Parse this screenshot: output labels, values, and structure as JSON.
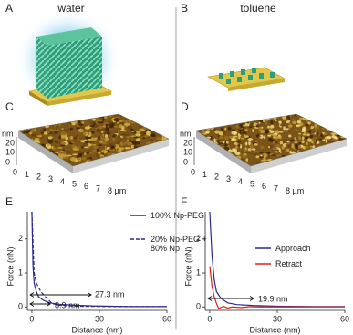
{
  "labels": [
    "A",
    "B",
    "C",
    "D",
    "E",
    "F"
  ],
  "titles": [
    "water",
    "toluene"
  ],
  "afm": {
    "z_unit": "nm",
    "z_ticks": [
      "20",
      "10",
      "0"
    ],
    "x_ticks": [
      "0",
      "1",
      "2",
      "3",
      "4",
      "5",
      "6",
      "7",
      "8 µm"
    ]
  },
  "chart_data": [
    {
      "type": "line",
      "ylabel": "Force (nN)",
      "xlabel": "Distance (nm)",
      "xlim": [
        -2,
        60
      ],
      "ylim": [
        -0.1,
        2.8
      ],
      "xticks": [
        0,
        30,
        60
      ],
      "yticks": [
        0,
        1,
        2
      ],
      "annotations": [
        "27.3 nm",
        "8.9 nm"
      ],
      "series": [
        {
          "name": "100% Np-PEG",
          "color": "#2a2a8c",
          "dash": false,
          "x": [
            0,
            0.5,
            1,
            2,
            3,
            5,
            8,
            12,
            20,
            27,
            35,
            45,
            60
          ],
          "values": [
            2.8,
            1.2,
            0.7,
            0.45,
            0.3,
            0.2,
            0.12,
            0.08,
            0.05,
            0.03,
            0.02,
            0.01,
            0.01
          ]
        },
        {
          "name": "20% Np-PEG + 80% Np",
          "color": "#2a2a8c",
          "dash": true,
          "x": [
            0,
            1,
            2,
            4,
            6,
            9,
            12,
            20,
            40,
            60
          ],
          "values": [
            2.8,
            1,
            0.7,
            0.45,
            0.3,
            0.1,
            0.05,
            0.02,
            0.01,
            0.01
          ]
        }
      ]
    },
    {
      "type": "line",
      "ylabel": "Force (nN)",
      "xlabel": "Distance (nm)",
      "xlim": [
        -2,
        60
      ],
      "ylim": [
        -0.1,
        2.8
      ],
      "xticks": [
        0,
        30,
        60
      ],
      "yticks": [
        0,
        1,
        2
      ],
      "annotations": [
        "19.9 nm"
      ],
      "series": [
        {
          "name": "Approach",
          "color": "#2a2a8c",
          "dash": false,
          "x": [
            0,
            1,
            2,
            3,
            5,
            8,
            12,
            20,
            30,
            45,
            60
          ],
          "values": [
            2.8,
            1.5,
            0.8,
            0.45,
            0.25,
            0.12,
            0.07,
            0.04,
            0.02,
            0.01,
            0.01
          ]
        },
        {
          "name": "Retract",
          "color": "#e02020",
          "dash": false,
          "x": [
            0,
            1,
            2,
            3,
            4,
            6,
            8,
            10,
            14,
            18,
            20,
            25,
            40,
            60
          ],
          "values": [
            1.2,
            0.6,
            0.3,
            0.1,
            -0.05,
            0.02,
            -0.03,
            0,
            -0.02,
            0.01,
            0,
            0,
            0,
            0
          ]
        }
      ]
    }
  ]
}
